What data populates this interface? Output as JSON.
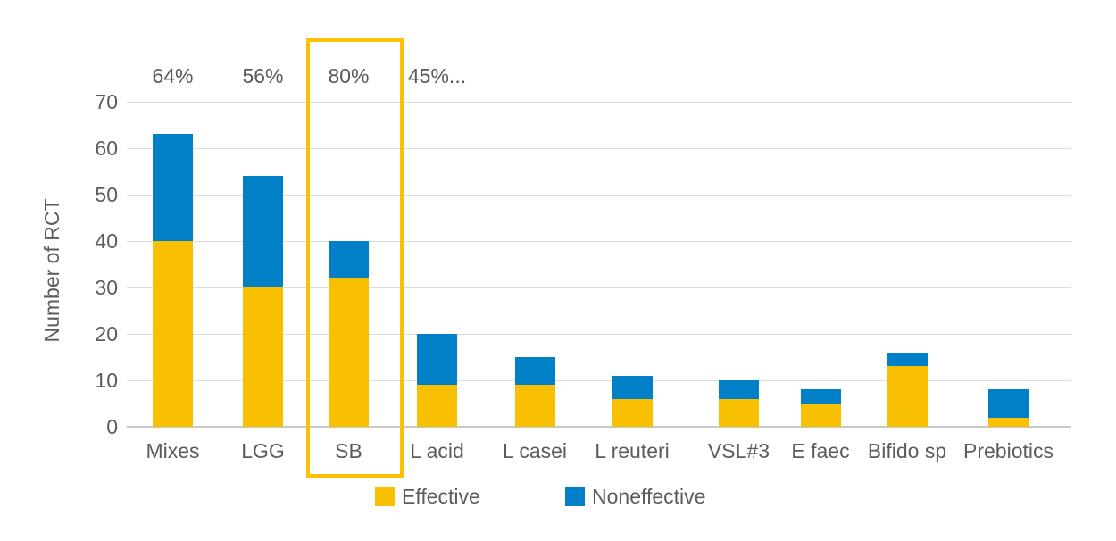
{
  "colors": {
    "effective": "#f9c001",
    "noneffective": "#0280c7",
    "highlight_box": "#ffc000",
    "gridline": "#dcdcdc",
    "axis_line": "#c9c9c9",
    "text": "#5c5c5c"
  },
  "legend": {
    "items": [
      {
        "label": "Effective",
        "color": "#f9c001"
      },
      {
        "label": "Noneffective",
        "color": "#0280c7"
      }
    ]
  },
  "chart_data": {
    "type": "bar",
    "stacked": true,
    "title": "",
    "xlabel": "",
    "ylabel": "Number of RCT",
    "ylim": [
      0,
      70
    ],
    "yticks": [
      0,
      10,
      20,
      30,
      40,
      50,
      60,
      70
    ],
    "grid": "horizontal",
    "legend_position": "bottom",
    "categories": [
      "Mixes",
      "LGG",
      "SB",
      "L acid",
      "L casei",
      "L reuteri",
      "VSL#3",
      "E faec",
      "Bifido sp",
      "Prebiotics"
    ],
    "series": [
      {
        "name": "Effective",
        "color": "#f9c001",
        "values": [
          40,
          30,
          32,
          9,
          9,
          6,
          6,
          5,
          13,
          2
        ]
      },
      {
        "name": "Noneffective",
        "color": "#0280c7",
        "values": [
          23,
          24,
          8,
          11,
          6,
          5,
          4,
          3,
          3,
          6
        ]
      }
    ],
    "totals": [
      63,
      54,
      40,
      20,
      15,
      11,
      10,
      8,
      16,
      8
    ],
    "annotations": [
      {
        "category": "Mixes",
        "text": "64%"
      },
      {
        "category": "LGG",
        "text": "56%"
      },
      {
        "category": "SB",
        "text": "80%"
      },
      {
        "category": "L acid",
        "text": "45%..."
      }
    ],
    "highlight": {
      "category": "SB",
      "color": "#ffc000"
    }
  }
}
